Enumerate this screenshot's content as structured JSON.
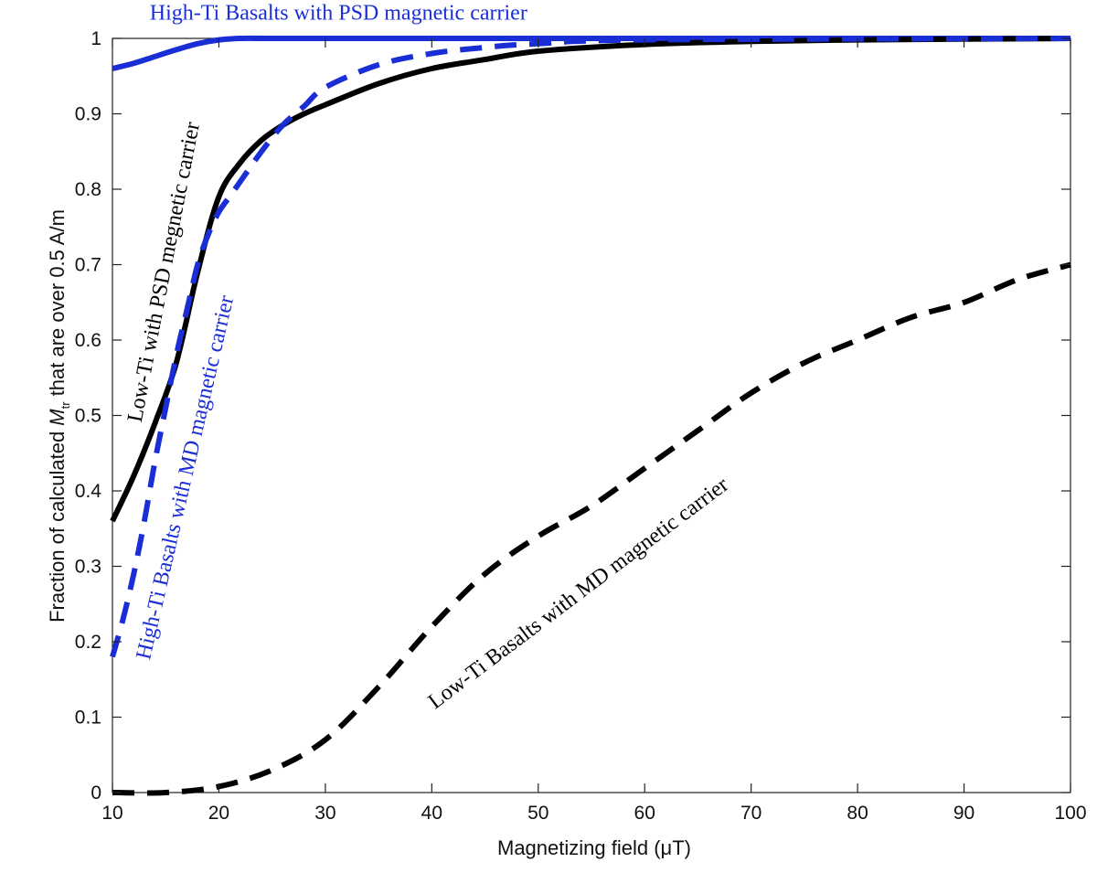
{
  "chart_data": {
    "type": "line",
    "xlabel_prefix": "Magnetizing field (",
    "xlabel_unit": "μT",
    "xlabel_suffix": ")",
    "ylabel_prefix": "Fraction of calculated ",
    "ylabel_symbol": "M",
    "ylabel_subscript": "tr",
    "ylabel_suffix": " that are over 0.5 A/m",
    "xlim": [
      10,
      100
    ],
    "ylim": [
      0,
      1
    ],
    "xticks": [
      10,
      20,
      30,
      40,
      50,
      60,
      70,
      80,
      90,
      100
    ],
    "yticks": [
      0,
      0.1,
      0.2,
      0.3,
      0.4,
      0.5,
      0.6,
      0.7,
      0.8,
      0.9,
      1
    ],
    "ytick_labels": [
      "0",
      "0.1",
      "0.2",
      "0.3",
      "0.4",
      "0.5",
      "0.6",
      "0.7",
      "0.8",
      "0.9",
      "1"
    ],
    "grid": false,
    "series": [
      {
        "name": "High-Ti Basalts with PSD magnetic carrier",
        "color": "#1a2ed6",
        "style": "solid",
        "x": [
          10,
          12,
          14,
          16,
          18,
          20,
          22,
          25,
          30,
          100
        ],
        "y": [
          0.96,
          0.967,
          0.976,
          0.985,
          0.993,
          0.998,
          1.0,
          1.0,
          1.0,
          1.0
        ]
      },
      {
        "name": "Low-Ti with PSD megnetic carrier",
        "color": "#000000",
        "style": "solid",
        "x": [
          10,
          12,
          14,
          16,
          18,
          20,
          22,
          24,
          26,
          28,
          30,
          35,
          40,
          45,
          50,
          60,
          70,
          80,
          90,
          100
        ],
        "y": [
          0.36,
          0.42,
          0.49,
          0.57,
          0.69,
          0.79,
          0.835,
          0.865,
          0.885,
          0.9,
          0.912,
          0.94,
          0.96,
          0.972,
          0.983,
          0.992,
          0.996,
          0.998,
          0.999,
          1.0
        ]
      },
      {
        "name": "High-Ti Basalts with MD magnetic carrier",
        "color": "#1a2ed6",
        "style": "dashed",
        "x": [
          10,
          11,
          12,
          13,
          14,
          15,
          16,
          17,
          18,
          19,
          20,
          21,
          22,
          24,
          26,
          28,
          30,
          35,
          40,
          45,
          50,
          60,
          100
        ],
        "y": [
          0.18,
          0.23,
          0.29,
          0.36,
          0.44,
          0.51,
          0.58,
          0.64,
          0.7,
          0.74,
          0.77,
          0.79,
          0.81,
          0.85,
          0.885,
          0.91,
          0.935,
          0.965,
          0.98,
          0.988,
          0.993,
          0.998,
          1.0
        ]
      },
      {
        "name": "Low-Ti Basalts with MD magnetic carrier",
        "color": "#000000",
        "style": "dashed",
        "x": [
          10,
          15,
          20,
          25,
          30,
          35,
          40,
          45,
          50,
          55,
          60,
          65,
          70,
          75,
          80,
          85,
          90,
          95,
          100
        ],
        "y": [
          0.0,
          0.0,
          0.008,
          0.03,
          0.07,
          0.14,
          0.22,
          0.29,
          0.34,
          0.38,
          0.43,
          0.48,
          0.53,
          0.57,
          0.6,
          0.63,
          0.65,
          0.68,
          0.7
        ]
      }
    ],
    "annotations": [
      {
        "text": "High-Ti Basalts with PSD magnetic carrier",
        "color": "#1a2ed6",
        "x": 13.5,
        "y": 1.025,
        "angle": 0
      },
      {
        "text": "Low-Ti with PSD megnetic carrier",
        "color": "#000000",
        "x": 12.7,
        "y": 0.49,
        "angle": -79
      },
      {
        "text": "High-Ti Basalts with MD magnetic carrier",
        "color": "#1a2ed6",
        "x": 13.5,
        "y": 0.175,
        "angle": -77
      },
      {
        "text": "Low-Ti Basalts with MD magnetic carrier",
        "color": "#000000",
        "x": 40.3,
        "y": 0.11,
        "angle": -37
      }
    ]
  }
}
